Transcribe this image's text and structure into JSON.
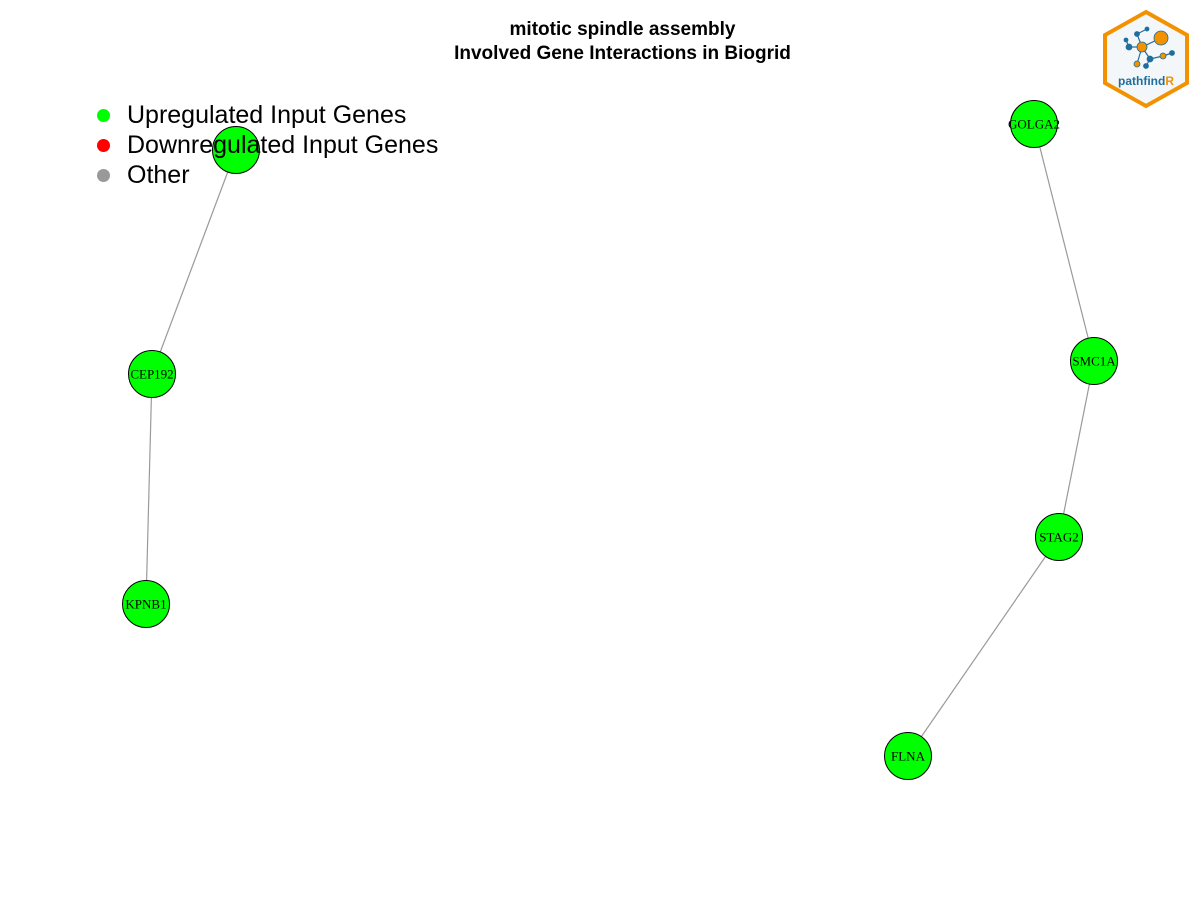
{
  "title": {
    "line1": "mitotic spindle assembly",
    "line2": "Involved Gene Interactions in Biogrid"
  },
  "legend": {
    "items": [
      {
        "label": "Upregulated Input Genes",
        "color": "#00ff00"
      },
      {
        "label": "Downregulated Input Genes",
        "color": "#ff0000"
      },
      {
        "label": "Other",
        "color": "#999999"
      }
    ]
  },
  "colors": {
    "upregulated": "#00ff00",
    "edge": "#9a9a9a",
    "node_stroke": "#000000",
    "logo_orange": "#f39200",
    "logo_blue": "#1f6e9c"
  },
  "network": {
    "nodes": [
      {
        "id": "n1",
        "label": "",
        "status": "upregulated"
      },
      {
        "id": "CEP192",
        "label": "CEP192",
        "status": "upregulated"
      },
      {
        "id": "KPNB1",
        "label": "KPNB1",
        "status": "upregulated"
      },
      {
        "id": "GOLGA2",
        "label": "GOLGA2",
        "status": "upregulated"
      },
      {
        "id": "SMC1A",
        "label": "SMC1A",
        "status": "upregulated"
      },
      {
        "id": "STAG2",
        "label": "STAG2",
        "status": "upregulated"
      },
      {
        "id": "FLNA",
        "label": "FLNA",
        "status": "upregulated"
      }
    ],
    "edges": [
      {
        "source": "n1",
        "target": "CEP192"
      },
      {
        "source": "CEP192",
        "target": "KPNB1"
      },
      {
        "source": "GOLGA2",
        "target": "SMC1A"
      },
      {
        "source": "SMC1A",
        "target": "STAG2"
      },
      {
        "source": "STAG2",
        "target": "FLNA"
      }
    ]
  },
  "logo": {
    "text_main": "pathfind",
    "text_accent": "R",
    "icon": "network-hexagon-logo"
  }
}
